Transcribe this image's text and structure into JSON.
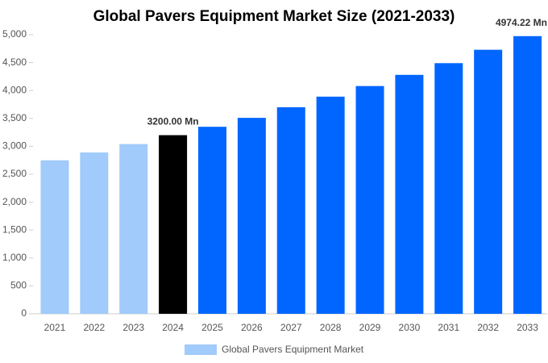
{
  "chart_data": {
    "type": "bar",
    "title": "Global Pavers Equipment Market Size (2021-2033)",
    "categories": [
      "2021",
      "2022",
      "2023",
      "2024",
      "2025",
      "2026",
      "2027",
      "2028",
      "2029",
      "2030",
      "2031",
      "2032",
      "2033"
    ],
    "series": [
      {
        "name": "Global Pavers Equipment Market",
        "color": "#a0cbfa",
        "values": [
          2750,
          2890,
          3040,
          3200,
          3350,
          3510,
          3700,
          3890,
          4080,
          4280,
          4490,
          4730,
          4974.22
        ],
        "value_labels": [
          null,
          null,
          null,
          "3200.00 Mn",
          null,
          null,
          null,
          null,
          null,
          null,
          null,
          null,
          "4974.22 Mn"
        ],
        "colors": [
          "#a0cbfa",
          "#a0cbfa",
          "#a0cbfa",
          "#000000",
          "#0066ff",
          "#0066ff",
          "#0066ff",
          "#0066ff",
          "#0066ff",
          "#0066ff",
          "#0066ff",
          "#0066ff",
          "#0066ff"
        ]
      }
    ],
    "ylim": [
      0,
      5000
    ],
    "yticks": [
      0,
      500,
      {
        "value": 1000,
        "label": "1,000"
      },
      {
        "value": 1500,
        "label": "1,500"
      },
      {
        "value": 2000,
        "label": "2,000"
      },
      {
        "value": 2500,
        "label": "2,500"
      },
      {
        "value": 3000,
        "label": "3,000"
      },
      {
        "value": 3500,
        "label": "3,500"
      },
      {
        "value": 4000,
        "label": "4,000"
      },
      {
        "value": 4500,
        "label": "4,500"
      },
      {
        "value": 5000,
        "label": "5,000"
      }
    ],
    "grid": false
  }
}
